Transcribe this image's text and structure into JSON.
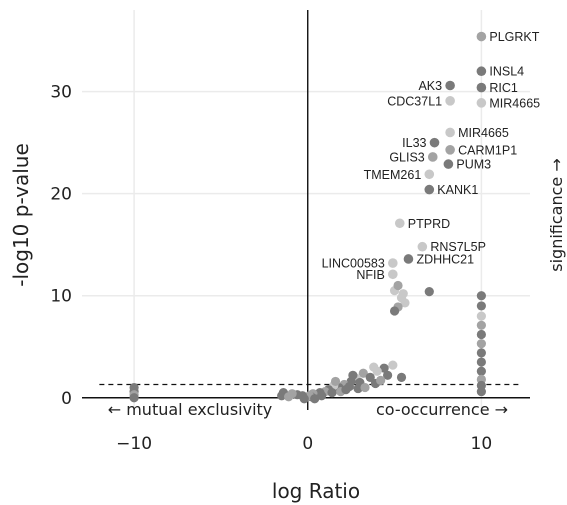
{
  "chart_data": {
    "type": "scatter",
    "title": "",
    "xlabel": "log Ratio",
    "ylabel": "-log10 p-value",
    "xlim": [
      -13,
      12.8
    ],
    "ylim": [
      -1.2,
      38
    ],
    "xticks": [
      -10,
      0,
      10
    ],
    "xtick_labels": [
      "−10",
      "0",
      "10"
    ],
    "yticks": [
      0,
      10,
      20,
      30
    ],
    "ytick_labels": [
      "0",
      "10",
      "20",
      "30"
    ],
    "grid": true,
    "threshold_y": 1.3,
    "left_annotation": "← mutual exclusivity",
    "right_annotation": "co-occurrence →",
    "side_label": "significance →",
    "colors": {
      "dark": "#7a7a7a",
      "mid": "#a3a3a3",
      "light": "#c8c8c8",
      "axis": "#111111",
      "grid": "#ebebeb"
    },
    "labeled_points": [
      {
        "label": "PLGRKT",
        "x": 10.0,
        "y": 35.4,
        "shade": "mid",
        "side": "right"
      },
      {
        "label": "INSL4",
        "x": 10.0,
        "y": 32.0,
        "shade": "dark",
        "side": "right"
      },
      {
        "label": "AK3",
        "x": 8.2,
        "y": 30.6,
        "shade": "dark",
        "side": "left"
      },
      {
        "label": "RIC1",
        "x": 10.0,
        "y": 30.4,
        "shade": "dark",
        "side": "right"
      },
      {
        "label": "CDC37L1",
        "x": 8.2,
        "y": 29.1,
        "shade": "light",
        "side": "left"
      },
      {
        "label": "MIR4665",
        "x": 10.0,
        "y": 28.9,
        "shade": "light",
        "side": "right"
      },
      {
        "label": "MIR4665",
        "x": 8.2,
        "y": 26.0,
        "shade": "light",
        "side": "right"
      },
      {
        "label": "IL33",
        "x": 7.3,
        "y": 25.0,
        "shade": "dark",
        "side": "left"
      },
      {
        "label": "CARM1P1",
        "x": 8.2,
        "y": 24.3,
        "shade": "mid",
        "side": "right"
      },
      {
        "label": "GLIS3",
        "x": 7.2,
        "y": 23.6,
        "shade": "mid",
        "side": "left"
      },
      {
        "label": "PUM3",
        "x": 8.1,
        "y": 22.9,
        "shade": "dark",
        "side": "right"
      },
      {
        "label": "TMEM261",
        "x": 7.0,
        "y": 21.9,
        "shade": "light",
        "side": "left"
      },
      {
        "label": "KANK1",
        "x": 7.0,
        "y": 20.4,
        "shade": "dark",
        "side": "right"
      },
      {
        "label": "PTPRD",
        "x": 5.3,
        "y": 17.1,
        "shade": "light",
        "side": "right"
      },
      {
        "label": "RNS7L5P",
        "x": 6.6,
        "y": 14.8,
        "shade": "light",
        "side": "right"
      },
      {
        "label": "ZDHHC21",
        "x": 5.8,
        "y": 13.6,
        "shade": "dark",
        "side": "right"
      },
      {
        "label": "LINC00583",
        "x": 4.9,
        "y": 13.2,
        "shade": "light",
        "side": "left"
      },
      {
        "label": "NFIB",
        "x": 4.9,
        "y": 12.1,
        "shade": "light",
        "side": "left"
      }
    ],
    "other_points": [
      {
        "x": 5.0,
        "y": 10.5,
        "shade": "light"
      },
      {
        "x": 5.2,
        "y": 11.0,
        "shade": "mid"
      },
      {
        "x": 5.4,
        "y": 9.8,
        "shade": "light"
      },
      {
        "x": 5.6,
        "y": 9.3,
        "shade": "light"
      },
      {
        "x": 5.2,
        "y": 8.9,
        "shade": "mid"
      },
      {
        "x": 5.0,
        "y": 8.5,
        "shade": "dark"
      },
      {
        "x": 5.5,
        "y": 10.2,
        "shade": "light"
      },
      {
        "x": 7.0,
        "y": 10.4,
        "shade": "dark"
      },
      {
        "x": 10.0,
        "y": 10.0,
        "shade": "dark"
      },
      {
        "x": 10.0,
        "y": 9.0,
        "shade": "dark"
      },
      {
        "x": 10.0,
        "y": 8.0,
        "shade": "light"
      },
      {
        "x": 10.0,
        "y": 7.1,
        "shade": "mid"
      },
      {
        "x": 10.0,
        "y": 6.2,
        "shade": "dark"
      },
      {
        "x": 10.0,
        "y": 5.3,
        "shade": "mid"
      },
      {
        "x": 10.0,
        "y": 4.4,
        "shade": "dark"
      },
      {
        "x": 10.0,
        "y": 3.5,
        "shade": "dark"
      },
      {
        "x": 10.0,
        "y": 2.6,
        "shade": "dark"
      },
      {
        "x": 10.0,
        "y": 1.8,
        "shade": "mid"
      },
      {
        "x": 10.0,
        "y": 1.2,
        "shade": "dark"
      },
      {
        "x": 10.0,
        "y": 0.6,
        "shade": "dark"
      },
      {
        "x": 4.9,
        "y": 3.2,
        "shade": "light"
      },
      {
        "x": 4.4,
        "y": 2.9,
        "shade": "dark"
      },
      {
        "x": 3.8,
        "y": 3.0,
        "shade": "light"
      },
      {
        "x": 4.6,
        "y": 2.2,
        "shade": "dark"
      },
      {
        "x": 3.2,
        "y": 2.4,
        "shade": "mid"
      },
      {
        "x": 3.6,
        "y": 2.0,
        "shade": "dark"
      },
      {
        "x": 2.8,
        "y": 1.9,
        "shade": "light"
      },
      {
        "x": 3.0,
        "y": 1.5,
        "shade": "dark"
      },
      {
        "x": 2.5,
        "y": 1.6,
        "shade": "dark"
      },
      {
        "x": 2.1,
        "y": 1.3,
        "shade": "mid"
      },
      {
        "x": 2.4,
        "y": 1.1,
        "shade": "dark"
      },
      {
        "x": 1.8,
        "y": 1.0,
        "shade": "dark"
      },
      {
        "x": 1.5,
        "y": 1.2,
        "shade": "light"
      },
      {
        "x": 1.2,
        "y": 0.8,
        "shade": "dark"
      },
      {
        "x": 1.0,
        "y": 0.6,
        "shade": "mid"
      },
      {
        "x": 0.7,
        "y": 0.5,
        "shade": "dark"
      },
      {
        "x": 0.5,
        "y": 0.3,
        "shade": "dark"
      },
      {
        "x": 0.3,
        "y": 0.4,
        "shade": "mid"
      },
      {
        "x": 0.8,
        "y": 0.2,
        "shade": "dark"
      },
      {
        "x": 1.4,
        "y": 0.5,
        "shade": "dark"
      },
      {
        "x": 1.9,
        "y": 0.6,
        "shade": "mid"
      },
      {
        "x": 2.2,
        "y": 0.8,
        "shade": "dark"
      },
      {
        "x": 2.9,
        "y": 0.9,
        "shade": "dark"
      },
      {
        "x": 3.3,
        "y": 1.0,
        "shade": "mid"
      },
      {
        "x": 3.9,
        "y": 1.4,
        "shade": "dark"
      },
      {
        "x": 4.2,
        "y": 1.7,
        "shade": "mid"
      },
      {
        "x": 4.0,
        "y": 2.6,
        "shade": "light"
      },
      {
        "x": 2.6,
        "y": 2.2,
        "shade": "dark"
      },
      {
        "x": 1.6,
        "y": 1.6,
        "shade": "mid"
      },
      {
        "x": 5.4,
        "y": 2.0,
        "shade": "dark"
      },
      {
        "x": 0.2,
        "y": 0.1,
        "shade": "dark"
      },
      {
        "x": 0.1,
        "y": 0.2,
        "shade": "mid"
      },
      {
        "x": -0.3,
        "y": 0.2,
        "shade": "dark"
      },
      {
        "x": -0.6,
        "y": 0.3,
        "shade": "dark"
      },
      {
        "x": -0.9,
        "y": 0.4,
        "shade": "mid"
      },
      {
        "x": -1.4,
        "y": 0.5,
        "shade": "dark"
      },
      {
        "x": -1.5,
        "y": 0.2,
        "shade": "dark"
      },
      {
        "x": -1.1,
        "y": 0.1,
        "shade": "mid"
      },
      {
        "x": -0.2,
        "y": -0.1,
        "shade": "dark"
      },
      {
        "x": 0.4,
        "y": -0.1,
        "shade": "dark"
      },
      {
        "x": -10.0,
        "y": 1.0,
        "shade": "dark"
      },
      {
        "x": -10.0,
        "y": 0.6,
        "shade": "dark"
      },
      {
        "x": -10.0,
        "y": 0.3,
        "shade": "mid"
      },
      {
        "x": -10.0,
        "y": 0.0,
        "shade": "dark"
      }
    ]
  }
}
